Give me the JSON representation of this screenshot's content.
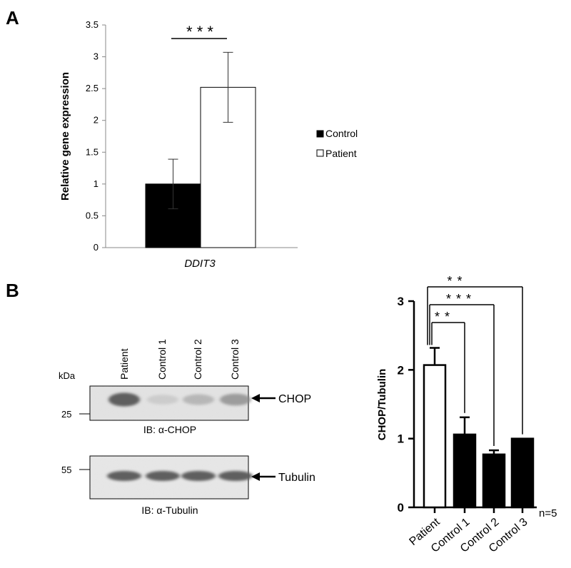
{
  "panels": {
    "a": {
      "letter": "A"
    },
    "b": {
      "letter": "B"
    }
  },
  "chart_data": [
    {
      "type": "bar",
      "panel": "A",
      "categories": [
        "DDIT3"
      ],
      "series": [
        {
          "name": "Control",
          "values": [
            1.0
          ],
          "error": [
            0.39
          ],
          "color": "#000000"
        },
        {
          "name": "Patient",
          "values": [
            2.52
          ],
          "error": [
            0.55
          ],
          "color": "#ffffff"
        }
      ],
      "xlabel": "DDIT3",
      "ylabel": "Relative gene expression",
      "ylim": [
        0,
        3.5
      ],
      "yticks": [
        "0",
        "0.5",
        "1",
        "1.5",
        "2",
        "2.5",
        "3",
        "3.5"
      ],
      "significance": [
        {
          "label": "* * *"
        }
      ],
      "legend": {
        "placement": "right"
      },
      "grid": false
    },
    {
      "type": "bar",
      "panel": "B",
      "categories": [
        "Patient",
        "Control  1",
        "Control  2",
        "Control  3"
      ],
      "values": [
        2.07,
        1.06,
        0.77,
        1.0
      ],
      "error": [
        0.25,
        0.25,
        0.06,
        0.0
      ],
      "colors": [
        "#ffffff",
        "#000000",
        "#000000",
        "#000000"
      ],
      "ylabel": "CHOP/Tubulin",
      "ylim": [
        0,
        3
      ],
      "yticks": [
        "0",
        "1",
        "2",
        "3"
      ],
      "significance": [
        {
          "label": "* *",
          "from": 0,
          "to": 1
        },
        {
          "label": "* * *",
          "from": 0,
          "to": 2
        },
        {
          "label": "* *",
          "from": 0,
          "to": 3
        }
      ],
      "note": "n=5",
      "grid": false
    }
  ],
  "blot": {
    "lanes": [
      "Patient",
      "Control 1",
      "Control 2",
      "Control 3"
    ],
    "kda_label": "kDa",
    "chop_panel": {
      "marker": "25",
      "band_label": "CHOP",
      "caption": "IB: α-CHOP",
      "band_intensity": [
        0.7,
        0.15,
        0.3,
        0.45
      ]
    },
    "tubulin_panel": {
      "marker": "55",
      "band_label": "Tubulin",
      "caption": "IB: α-Tubulin",
      "band_intensity": [
        0.75,
        0.75,
        0.75,
        0.75
      ]
    }
  }
}
